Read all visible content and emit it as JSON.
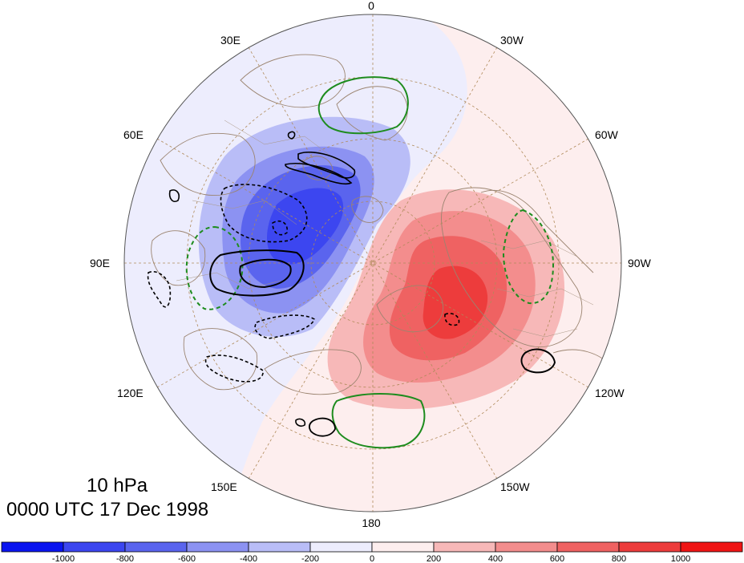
{
  "titles": {
    "level": "10 hPa",
    "time": "0000 UTC 17 Dec 1998"
  },
  "longitude_labels": {
    "top": "0",
    "bottom": "180",
    "left": "90E",
    "right": "90W",
    "upper_left_1": "30E",
    "upper_left_2": "60E",
    "lower_left_1": "120E",
    "lower_left_2": "150E",
    "upper_right_1": "30W",
    "upper_right_2": "60W",
    "lower_right_1": "120W",
    "lower_right_2": "150W"
  },
  "colorbar": {
    "tick_labels": [
      "-1000",
      "-800",
      "-600",
      "-400",
      "-200",
      "0",
      "200",
      "400",
      "600",
      "800",
      "1000"
    ],
    "colors": [
      "#0a14f0",
      "#3c46f0",
      "#5a64ee",
      "#8c92f2",
      "#b9bdf7",
      "#ededfd",
      "#fdeeee",
      "#f7b8b8",
      "#f38d8d",
      "#ef6262",
      "#ed3c3c",
      "#f01414"
    ]
  },
  "contour_colors": {
    "background_negative": "#ededfd",
    "background_positive": "#fdeeee",
    "coast": "#9b8470",
    "grid": "#b08a5a",
    "positive_contour": "#000000",
    "green_contour": "#1e8c1e"
  }
}
